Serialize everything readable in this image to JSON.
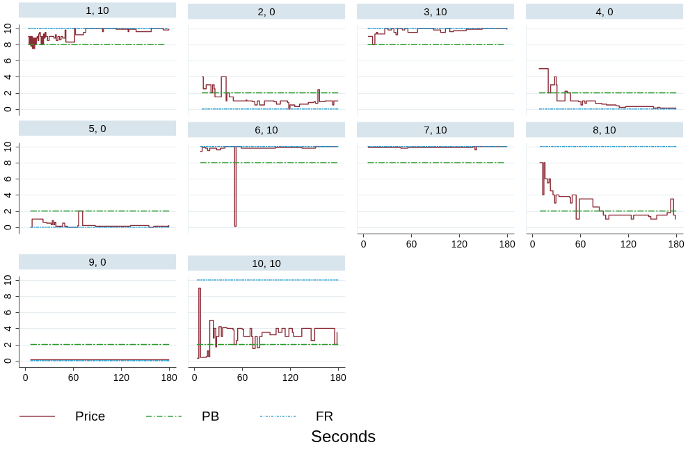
{
  "chart_data": [
    {
      "type": "step",
      "title": "1, 10",
      "legend": "bottom",
      "xlim": [
        -8,
        189
      ],
      "ylim": [
        -0.8,
        10.5
      ],
      "yticks": [
        0,
        2,
        4,
        6,
        8,
        10
      ],
      "grid": "y",
      "tick_labels": "y",
      "series": [
        {
          "name": "Price",
          "color": "#8c2d37",
          "line_style": "solid",
          "x": [
            4,
            5,
            6,
            7,
            8,
            9,
            10,
            11,
            12,
            13,
            14,
            15,
            16,
            17,
            18,
            19,
            20,
            21,
            22,
            23,
            24,
            25,
            26,
            28,
            30,
            34,
            36,
            38,
            39,
            41,
            43,
            45,
            47,
            50,
            51,
            62,
            63,
            68,
            73,
            76,
            97,
            98,
            114,
            129,
            130,
            139,
            157,
            158,
            173,
            180
          ],
          "values": [
            9.0,
            8.0,
            9.0,
            7.8,
            9.0,
            7.5,
            8.8,
            7.5,
            8.8,
            8.0,
            8.8,
            9.0,
            8.5,
            9.3,
            9.5,
            9.0,
            8.0,
            9.0,
            8.0,
            9.3,
            8.8,
            9.5,
            9.0,
            8.5,
            9.0,
            9.0,
            8.8,
            9.2,
            8.5,
            9.0,
            8.6,
            9.0,
            8.8,
            9.8,
            8.3,
            10.0,
            9.2,
            9.2,
            9.5,
            10.0,
            9.6,
            10.0,
            9.9,
            9.6,
            9.9,
            9.6,
            9.6,
            10.0,
            9.8,
            9.9
          ]
        },
        {
          "name": "PB",
          "color": "#2a9a2a",
          "line_style": "dashed",
          "x": [
            4,
            174
          ],
          "values": [
            8,
            8
          ]
        },
        {
          "name": "FR",
          "color": "#2a9fd0",
          "line_style": "dotted",
          "x": [
            4,
            178
          ],
          "values": [
            10,
            10
          ]
        }
      ]
    },
    {
      "type": "step",
      "title": "2, 0",
      "legend": "bottom",
      "xlim": [
        -8,
        189
      ],
      "ylim": [
        -0.8,
        10.5
      ],
      "yticks": [
        0,
        2,
        4,
        6,
        8,
        10
      ],
      "grid": "y",
      "tick_labels": false,
      "series": [
        {
          "name": "Price",
          "color": "#8c2d37",
          "line_style": "solid",
          "x": [
            10.2,
            11.4,
            15,
            19.5,
            21,
            23,
            25,
            26,
            31,
            34,
            38.5,
            40,
            41,
            44,
            47,
            49,
            65,
            66,
            73,
            76,
            79,
            82,
            88,
            100,
            103,
            108,
            117,
            118.5,
            120,
            126,
            132,
            143,
            150,
            152,
            155,
            157,
            164,
            172.6,
            173.5,
            175,
            180
          ],
          "values": [
            4.0,
            2.5,
            3.0,
            3.0,
            2.0,
            3.0,
            2.5,
            1.5,
            1.5,
            4.0,
            4.0,
            1.0,
            2.0,
            1.5,
            1.5,
            1.0,
            1.1,
            1.0,
            0.9,
            0.5,
            1.0,
            0.5,
            1.0,
            0.9,
            0.6,
            1.0,
            0.8,
            0.0,
            0.5,
            0.3,
            0.6,
            0.8,
            0.9,
            0.7,
            2.4,
            0.9,
            1.0,
            1.0,
            0.5,
            1.0,
            1.0
          ]
        },
        {
          "name": "PB",
          "color": "#2a9a2a",
          "line_style": "dashed",
          "x": [
            10,
            180
          ],
          "values": [
            2,
            2
          ]
        },
        {
          "name": "FR",
          "color": "#2a9fd0",
          "line_style": "dotted",
          "x": [
            10,
            180
          ],
          "values": [
            0,
            0
          ]
        }
      ]
    },
    {
      "type": "step",
      "title": "3, 10",
      "legend": "bottom",
      "xlim": [
        -8,
        189
      ],
      "ylim": [
        -0.8,
        10.5
      ],
      "yticks": [
        0,
        2,
        4,
        6,
        8,
        10
      ],
      "grid": "y",
      "tick_labels": false,
      "series": [
        {
          "name": "Price",
          "color": "#8c2d37",
          "line_style": "solid",
          "x": [
            6.4,
            10.8,
            11.7,
            13.7,
            14.6,
            16.6,
            18,
            25,
            27,
            31,
            35.6,
            38.5,
            41,
            43,
            49,
            52,
            56,
            66.7,
            68,
            85,
            88,
            94,
            97,
            103,
            108.5,
            113,
            129,
            143,
            149,
            180
          ],
          "values": [
            9.0,
            9.0,
            8.0,
            8.0,
            9.3,
            9.5,
            9.3,
            9.3,
            10.0,
            9.8,
            10.0,
            9.5,
            9.2,
            10.0,
            9.8,
            10.0,
            9.5,
            9.5,
            10.0,
            10.0,
            9.8,
            9.8,
            9.5,
            10.0,
            9.6,
            9.7,
            9.9,
            9.9,
            10.0,
            9.9
          ]
        },
        {
          "name": "PB",
          "color": "#2a9a2a",
          "line_style": "dashed",
          "x": [
            6,
            176
          ],
          "values": [
            8,
            8
          ]
        },
        {
          "name": "FR",
          "color": "#2a9fd0",
          "line_style": "dotted",
          "x": [
            6,
            180
          ],
          "values": [
            10,
            10
          ]
        }
      ]
    },
    {
      "type": "step",
      "title": "4, 0",
      "legend": "bottom",
      "xlim": [
        -8,
        189
      ],
      "ylim": [
        -0.8,
        10.5
      ],
      "yticks": [
        0,
        2,
        4,
        6,
        8,
        10
      ],
      "grid": "y",
      "tick_labels": false,
      "series": [
        {
          "name": "Price",
          "color": "#8c2d37",
          "line_style": "solid",
          "x": [
            8.7,
            19,
            20,
            22,
            23,
            26,
            28,
            30,
            31,
            39,
            41,
            44,
            48,
            58,
            61,
            63,
            66,
            68,
            76,
            79,
            87,
            93,
            105,
            109,
            117,
            134,
            152,
            157,
            160,
            180
          ],
          "values": [
            5.0,
            5.0,
            2.0,
            2.0,
            3.0,
            3.0,
            4.0,
            3.0,
            1.0,
            1.0,
            2.2,
            2.0,
            1.0,
            0.9,
            0.5,
            1.0,
            0.7,
            1.0,
            1.0,
            0.7,
            0.6,
            0.5,
            0.4,
            0.2,
            0.3,
            0.3,
            0.1,
            0.2,
            0.1,
            0.1
          ]
        },
        {
          "name": "PB",
          "color": "#2a9a2a",
          "line_style": "dashed",
          "x": [
            9,
            180
          ],
          "values": [
            2,
            2
          ]
        },
        {
          "name": "FR",
          "color": "#2a9fd0",
          "line_style": "dotted",
          "x": [
            9,
            180
          ],
          "values": [
            0,
            0
          ]
        }
      ]
    },
    {
      "type": "step",
      "title": "5, 0",
      "legend": "bottom",
      "xlim": [
        -8,
        189
      ],
      "ylim": [
        -0.8,
        10.5
      ],
      "yticks": [
        0,
        2,
        4,
        6,
        8,
        10
      ],
      "grid": "y",
      "tick_labels": "y",
      "series": [
        {
          "name": "Price",
          "color": "#8c2d37",
          "line_style": "solid",
          "x": [
            7,
            8.7,
            21,
            22.4,
            27,
            32.6,
            34,
            35.6,
            37,
            38.5,
            44,
            47,
            49.6,
            53,
            62,
            66,
            67,
            70.6,
            72,
            88,
            132,
            155,
            161,
            180
          ],
          "values": [
            0.0,
            1.0,
            1.0,
            0.6,
            0.5,
            0.3,
            0.8,
            0.3,
            0.6,
            0.1,
            0.1,
            0.5,
            0.1,
            0.0,
            0.0,
            0.2,
            2.0,
            2.0,
            0.2,
            0.1,
            0.2,
            0.0,
            0.1,
            0.2
          ]
        },
        {
          "name": "PB",
          "color": "#2a9a2a",
          "line_style": "dashed",
          "x": [
            7,
            180
          ],
          "values": [
            2,
            2
          ]
        },
        {
          "name": "FR",
          "color": "#2a9fd0",
          "line_style": "dotted",
          "x": [
            7,
            180
          ],
          "values": [
            0,
            0
          ]
        }
      ]
    },
    {
      "type": "step",
      "title": "6, 10",
      "legend": "bottom",
      "xlim": [
        -8,
        189
      ],
      "ylim": [
        -0.8,
        10.5
      ],
      "yticks": [
        0,
        2,
        4,
        6,
        8,
        10
      ],
      "grid": "y",
      "tick_labels": false,
      "series": [
        {
          "name": "Price",
          "color": "#8c2d37",
          "line_style": "solid",
          "x": [
            7.9,
            10,
            14,
            16.6,
            19.5,
            25,
            28,
            33,
            38.5,
            49.6,
            50.7,
            52.5,
            59,
            88,
            102,
            135,
            152,
            180
          ],
          "values": [
            9.4,
            9.9,
            9.8,
            9.5,
            9.8,
            9.8,
            9.6,
            9.8,
            10.0,
            10.0,
            0.1,
            10.0,
            9.8,
            9.8,
            9.9,
            9.8,
            10.0,
            10.0
          ]
        },
        {
          "name": "PB",
          "color": "#2a9a2a",
          "line_style": "dashed",
          "x": [
            8,
            179
          ],
          "values": [
            8,
            8
          ]
        },
        {
          "name": "FR",
          "color": "#2a9fd0",
          "line_style": "dotted",
          "x": [
            8,
            180
          ],
          "values": [
            10,
            10
          ]
        }
      ]
    },
    {
      "type": "step",
      "title": "7, 10",
      "legend": "bottom",
      "xlim": [
        -8,
        189
      ],
      "ylim": [
        -0.8,
        10.5
      ],
      "xticks": [
        0,
        60,
        120,
        180
      ],
      "yticks": [
        0,
        2,
        4,
        6,
        8,
        10
      ],
      "grid": "y",
      "tick_labels": "x",
      "series": [
        {
          "name": "Price",
          "color": "#8c2d37",
          "line_style": "solid",
          "x": [
            6.4,
            27,
            47,
            56,
            97,
            137.6,
            140,
            142,
            180
          ],
          "values": [
            9.9,
            9.9,
            9.8,
            9.9,
            9.9,
            10.0,
            9.6,
            10.0,
            10.0
          ]
        },
        {
          "name": "PB",
          "color": "#2a9a2a",
          "line_style": "dashed",
          "x": [
            6,
            176
          ],
          "values": [
            8,
            8
          ]
        },
        {
          "name": "FR",
          "color": "#2a9fd0",
          "line_style": "dotted",
          "x": [
            6,
            180
          ],
          "values": [
            10,
            10
          ]
        }
      ]
    },
    {
      "type": "step",
      "title": "8, 10",
      "legend": "bottom",
      "xlim": [
        -8,
        189
      ],
      "ylim": [
        -0.8,
        10.5
      ],
      "xticks": [
        0,
        60,
        120,
        180
      ],
      "yticks": [
        0,
        2,
        4,
        6,
        8,
        10
      ],
      "grid": "y",
      "tick_labels": "x",
      "series": [
        {
          "name": "Price",
          "color": "#8c2d37",
          "line_style": "solid",
          "x": [
            9.6,
            11.7,
            13,
            14.6,
            16,
            19,
            21,
            22.7,
            26,
            28,
            29.7,
            33.5,
            46.6,
            48,
            50,
            54,
            55,
            58,
            59,
            73,
            76,
            84,
            89,
            92,
            96,
            122,
            124,
            127,
            146,
            148.6,
            154.5,
            156,
            169,
            173.5,
            175.5,
            177,
            179.3
          ],
          "values": [
            8.0,
            8.0,
            4.0,
            8.0,
            6.0,
            5.5,
            6.0,
            4.5,
            4.0,
            3.0,
            4.0,
            3.8,
            3.7,
            3.0,
            4.0,
            4.0,
            1.0,
            1.0,
            3.5,
            3.5,
            2.5,
            2.0,
            1.5,
            1.0,
            1.5,
            1.5,
            1.0,
            1.5,
            1.3,
            1.0,
            1.0,
            1.5,
            1.8,
            3.5,
            3.5,
            1.5,
            1.0
          ]
        },
        {
          "name": "PB",
          "color": "#2a9a2a",
          "line_style": "dashed",
          "x": [
            10,
            180
          ],
          "values": [
            2,
            2
          ]
        },
        {
          "name": "FR",
          "color": "#2a9fd0",
          "line_style": "dotted",
          "x": [
            10,
            180
          ],
          "values": [
            10,
            10
          ]
        }
      ]
    },
    {
      "type": "step",
      "title": "9, 0",
      "legend": "bottom",
      "xlim": [
        -8,
        189
      ],
      "ylim": [
        -0.8,
        10.5
      ],
      "xticks": [
        0,
        60,
        120,
        180
      ],
      "yticks": [
        0,
        2,
        4,
        6,
        8,
        10
      ],
      "grid": "y",
      "series": [
        {
          "name": "Price",
          "color": "#8c2d37",
          "line_style": "solid",
          "x": [
            7,
            73,
            102.6,
            180
          ],
          "values": [
            0.1,
            0.1,
            0.1,
            0.1
          ]
        },
        {
          "name": "PB",
          "color": "#2a9a2a",
          "line_style": "dashed",
          "x": [
            7,
            180
          ],
          "values": [
            2,
            2
          ]
        },
        {
          "name": "FR",
          "color": "#2a9fd0",
          "line_style": "dotted",
          "x": [
            7,
            180
          ],
          "values": [
            0,
            0
          ]
        }
      ]
    },
    {
      "type": "step",
      "title": "10, 10",
      "xlabel": "Seconds",
      "legend": "bottom",
      "xlim": [
        -8,
        189
      ],
      "ylim": [
        -0.8,
        10.5
      ],
      "xticks": [
        0,
        60,
        120,
        180
      ],
      "yticks": [
        0,
        2,
        4,
        6,
        8,
        10
      ],
      "grid": "y",
      "tick_labels": "x",
      "series": [
        {
          "name": "Price",
          "color": "#8c2d37",
          "line_style": "solid",
          "x": [
            4,
            5.8,
            7,
            7.9,
            15,
            16.6,
            18,
            19.5,
            22.4,
            24,
            25,
            27,
            28,
            31,
            34,
            35.6,
            41,
            48.7,
            50,
            53,
            54.5,
            60,
            62,
            67.6,
            70,
            72,
            73.5,
            76.4,
            79,
            82,
            85,
            95,
            102.6,
            105.5,
            110,
            114,
            118.7,
            123,
            124.5,
            133,
            134.8,
            145,
            146.5,
            149,
            151,
            175,
            176,
            179
          ],
          "values": [
            0.3,
            9.0,
            9.0,
            0.4,
            0.5,
            1.2,
            0.5,
            5.0,
            5.0,
            2.8,
            4.0,
            1.7,
            3.0,
            4.2,
            3.0,
            4.1,
            4.0,
            3.8,
            2.0,
            2.5,
            4.0,
            3.9,
            3.0,
            3.0,
            4.0,
            3.0,
            1.5,
            3.0,
            1.6,
            3.0,
            3.5,
            3.2,
            4.0,
            3.5,
            4.0,
            3.0,
            4.0,
            3.5,
            3.0,
            3.0,
            4.0,
            4.0,
            2.5,
            2.5,
            4.0,
            4.0,
            2.0,
            3.5
          ]
        },
        {
          "name": "PB",
          "color": "#2a9a2a",
          "line_style": "dashed",
          "x": [
            4,
            180
          ],
          "values": [
            2,
            2
          ]
        },
        {
          "name": "FR",
          "color": "#2a9fd0",
          "line_style": "dotted",
          "x": [
            4,
            180
          ],
          "values": [
            10,
            10
          ]
        }
      ]
    }
  ]
}
